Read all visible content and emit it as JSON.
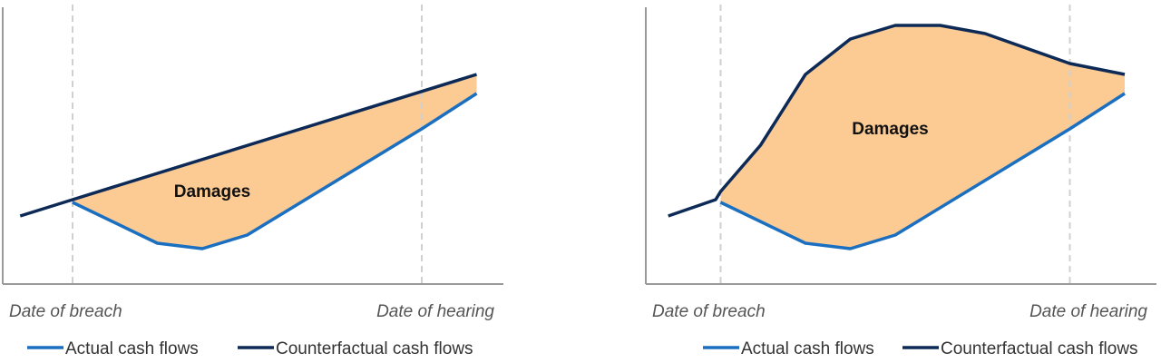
{
  "colors": {
    "actual": "#1b6fc0",
    "counterfactual": "#0d2a57",
    "damages": "#fccb94",
    "axis": "#9a9a9a",
    "marker": "#d0d0d0"
  },
  "chart_data": [
    {
      "type": "line",
      "title": "",
      "xlabel": "",
      "ylabel": "",
      "xlim": [
        0,
        10
      ],
      "ylim": [
        0,
        10
      ],
      "markers": {
        "breach": {
          "x": 1.4,
          "label": "Date of breach"
        },
        "hearing": {
          "x": 8.4,
          "label": "Date of hearing"
        }
      },
      "annotation": {
        "text": "Damages",
        "x": 4.2,
        "y": 3.2
      },
      "series": [
        {
          "name": "Actual cash flows",
          "points": [
            [
              1.4,
              3.0
            ],
            [
              3.1,
              1.5
            ],
            [
              4.0,
              1.3
            ],
            [
              4.9,
              1.8
            ],
            [
              8.4,
              5.7
            ],
            [
              9.5,
              7.0
            ]
          ]
        },
        {
          "name": "Counterfactual cash flows",
          "points": [
            [
              0.35,
              2.5
            ],
            [
              1.4,
              3.1
            ],
            [
              9.5,
              7.7
            ]
          ]
        }
      ],
      "legend": {
        "position": "bottom",
        "items": [
          "Actual cash flows",
          "Counterfactual cash flows"
        ]
      }
    },
    {
      "type": "line",
      "title": "",
      "xlabel": "",
      "ylabel": "",
      "xlim": [
        0,
        10
      ],
      "ylim": [
        0,
        10
      ],
      "markers": {
        "breach": {
          "x": 1.5,
          "label": "Date of breach"
        },
        "hearing": {
          "x": 8.5,
          "label": "Date of hearing"
        }
      },
      "annotation": {
        "text": "Damages",
        "x": 4.9,
        "y": 5.5
      },
      "series": [
        {
          "name": "Actual cash flows",
          "points": [
            [
              1.5,
              3.0
            ],
            [
              3.2,
              1.5
            ],
            [
              4.1,
              1.3
            ],
            [
              5.0,
              1.8
            ],
            [
              8.5,
              5.7
            ],
            [
              9.6,
              7.0
            ]
          ]
        },
        {
          "name": "Counterfactual cash flows",
          "points": [
            [
              0.45,
              2.5
            ],
            [
              1.4,
              3.1
            ],
            [
              1.5,
              3.4
            ],
            [
              2.3,
              5.1
            ],
            [
              3.2,
              7.7
            ],
            [
              4.1,
              9.0
            ],
            [
              5.0,
              9.5
            ],
            [
              5.9,
              9.5
            ],
            [
              6.8,
              9.2
            ],
            [
              8.5,
              8.1
            ],
            [
              9.6,
              7.7
            ]
          ]
        }
      ],
      "legend": {
        "position": "bottom",
        "items": [
          "Actual cash flows",
          "Counterfactual cash flows"
        ]
      }
    }
  ]
}
